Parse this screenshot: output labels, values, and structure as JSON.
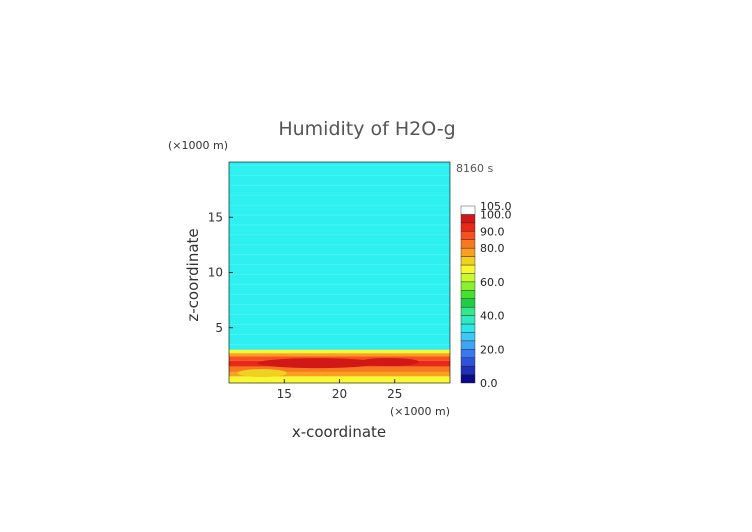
{
  "chart_data": {
    "type": "heatmap",
    "title": "Humidity of H2O-g",
    "time_label": "8160 s",
    "xlabel": "x-coordinate",
    "ylabel": "z-coordinate",
    "x_unit": "(×1000 m)",
    "y_unit": "(×1000 m)",
    "xlim": [
      10,
      30
    ],
    "ylim": [
      0,
      20
    ],
    "x_ticks": [
      15,
      20,
      25
    ],
    "y_ticks": [
      5,
      10,
      15
    ],
    "grid": false,
    "colorbar": {
      "levels": [
        0,
        5,
        10,
        15,
        20,
        25,
        30,
        35,
        40,
        45,
        50,
        55,
        60,
        65,
        70,
        75,
        80,
        85,
        90,
        95,
        100,
        105
      ],
      "labels": [
        "0.0",
        "20.0",
        "40.0",
        "60.0",
        "80.0",
        "90.0",
        "100.0",
        "105.0"
      ],
      "colors": [
        "#0a0a8c",
        "#1f2fb8",
        "#2f52d8",
        "#3a78ee",
        "#40a3f5",
        "#3ec8f3",
        "#2fe6e6",
        "#33e8c0",
        "#35e68a",
        "#22cc44",
        "#46e030",
        "#88f030",
        "#c8f830",
        "#f8f830",
        "#f0d020",
        "#f8a020",
        "#f87820",
        "#f85020",
        "#e82818",
        "#d01818",
        "#ffffff"
      ]
    },
    "description_values": {
      "upper_region_humidity": 40,
      "upper_region_z_range": [
        3,
        20
      ],
      "boundary_layer_z_range": [
        0,
        3
      ],
      "boundary_layer_max": 100,
      "surface_humidity": 70
    }
  }
}
